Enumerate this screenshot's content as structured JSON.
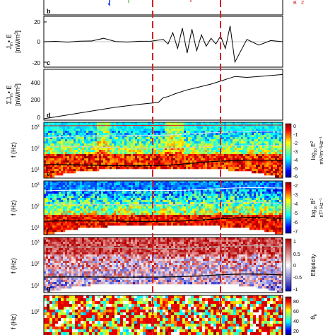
{
  "chart_data": [
    {
      "panel": "b",
      "type": "line",
      "xlabel": "",
      "ylabel": "",
      "ylim": [
        0,
        1
      ],
      "legend_labels": [
        "B",
        "Z"
      ],
      "tick_labels_y": [],
      "x": [],
      "values": []
    },
    {
      "panel": "c",
      "type": "line",
      "ylabel": [
        "J",
        "m",
        "• E",
        "[nW/m",
        "3",
        "]"
      ],
      "ylim": [
        -20,
        20
      ],
      "yticks": [
        -20,
        0,
        20
      ],
      "x": [
        0,
        0.05,
        0.1,
        0.15,
        0.2,
        0.25,
        0.3,
        0.35,
        0.4,
        0.45,
        0.5,
        0.52,
        0.54,
        0.56,
        0.58,
        0.6,
        0.62,
        0.64,
        0.66,
        0.68,
        0.7,
        0.72,
        0.74,
        0.76,
        0.78,
        0.8,
        0.85,
        0.9,
        0.95,
        1.0
      ],
      "values": [
        0,
        0.3,
        -0.4,
        0.5,
        0.6,
        3,
        0.2,
        -0.3,
        0.4,
        0.5,
        2,
        -2,
        8,
        -6,
        12,
        -10,
        11,
        -8,
        6,
        -4,
        3,
        -2,
        5,
        -6,
        14,
        -18,
        2,
        -3,
        1,
        0
      ]
    },
    {
      "panel": "d",
      "type": "line",
      "ylabel": [
        "ΣJ",
        "m",
        "• E",
        "[nW/m",
        "3",
        "]"
      ],
      "ylim": [
        0,
        500
      ],
      "yticks": [
        0,
        200,
        400
      ],
      "x": [
        0,
        0.1,
        0.2,
        0.3,
        0.4,
        0.48,
        0.5,
        0.52,
        0.55,
        0.6,
        0.65,
        0.7,
        0.75,
        0.8,
        0.85,
        0.9,
        1.0
      ],
      "values": [
        0,
        40,
        80,
        120,
        150,
        170,
        220,
        230,
        260,
        300,
        330,
        360,
        400,
        440,
        430,
        440,
        460
      ]
    },
    {
      "panel": "e",
      "type": "heatmap",
      "ylabel": "f (Hz)",
      "yticks": [
        "10",
        "10",
        "10"
      ],
      "ytick_exponents": [
        "3",
        "2",
        "1"
      ],
      "colorbar_label": "log10 E2 mV2m-2Hz-1",
      "colorbar_ticks": [
        "0",
        "-1",
        "-2",
        "-3",
        "-4",
        "-5",
        "-6"
      ]
    },
    {
      "panel": "f",
      "type": "heatmap",
      "ylabel": "f (Hz)",
      "yticks": [
        "10",
        "10",
        "10"
      ],
      "ytick_exponents": [
        "3",
        "2",
        "1"
      ],
      "colorbar_label": "log10 B2 nT2 Hz-1",
      "colorbar_ticks": [
        "-2",
        "-3",
        "-4",
        "-5",
        "-6",
        "-7"
      ]
    },
    {
      "panel": "g",
      "type": "heatmap",
      "ylabel": "f (Hz)",
      "yticks": [
        "10",
        "10",
        "10"
      ],
      "ytick_exponents": [
        "3",
        "2",
        "1"
      ],
      "colorbar_label": "Ellipticity",
      "colorbar_ticks": [
        "1",
        "0.5",
        "0",
        "-0.5",
        "-1"
      ]
    },
    {
      "panel": "h",
      "type": "heatmap",
      "ylabel": "f (Hz)",
      "yticks": [
        "10"
      ],
      "ytick_exponents": [
        "2"
      ],
      "colorbar_label": "θk",
      "colorbar_ticks": [
        "80",
        "60",
        "40",
        "20"
      ]
    }
  ],
  "labels": {
    "c_tick_20": "20",
    "c_tick_0": "0",
    "c_tick_m20": "-20",
    "d_tick_400": "400",
    "d_tick_200": "200",
    "d_tick_0": "0",
    "panel_b": "b",
    "panel_c": "c",
    "panel_d": "d",
    "panel_e": "e",
    "panel_f": "f",
    "panel_g": "g",
    "c_ylab1": "J",
    "c_ylab1_sub": "m",
    "c_ylab1_rest": "• E",
    "c_ylab2": "[nW/m",
    "c_ylab2_sup": "3",
    "c_ylab2_end": "]",
    "d_ylab1": "ΣJ",
    "d_ylab1_sub": "m",
    "d_ylab1_rest": "• E",
    "d_ylab2": "[nW/m",
    "d_ylab2_sup": "3",
    "d_ylab2_end": "]",
    "f_hz": "f (Hz)",
    "ten": "10",
    "exp3": "3",
    "exp2": "2",
    "exp1": "1",
    "cb_e_title_a": "log",
    "cb_e_title_sub": "10",
    "cb_e_title_b": " E",
    "cb_e_title_sup": "2",
    "cb_e_unit": "mV²m⁻²Hz⁻¹",
    "cb_f_title_a": "log",
    "cb_f_title_sub": "10",
    "cb_f_title_b": " B",
    "cb_f_title_sup": "2",
    "cb_f_unit": "nT² Hz⁻¹",
    "cb_g_title": "Ellipticity",
    "cb_h_title": "θ",
    "cb_h_sub": "k",
    "legend_b_1": "B",
    "legend_b_2": "Z"
  },
  "colors": {
    "dash": "#d42020",
    "line": "#000000"
  }
}
